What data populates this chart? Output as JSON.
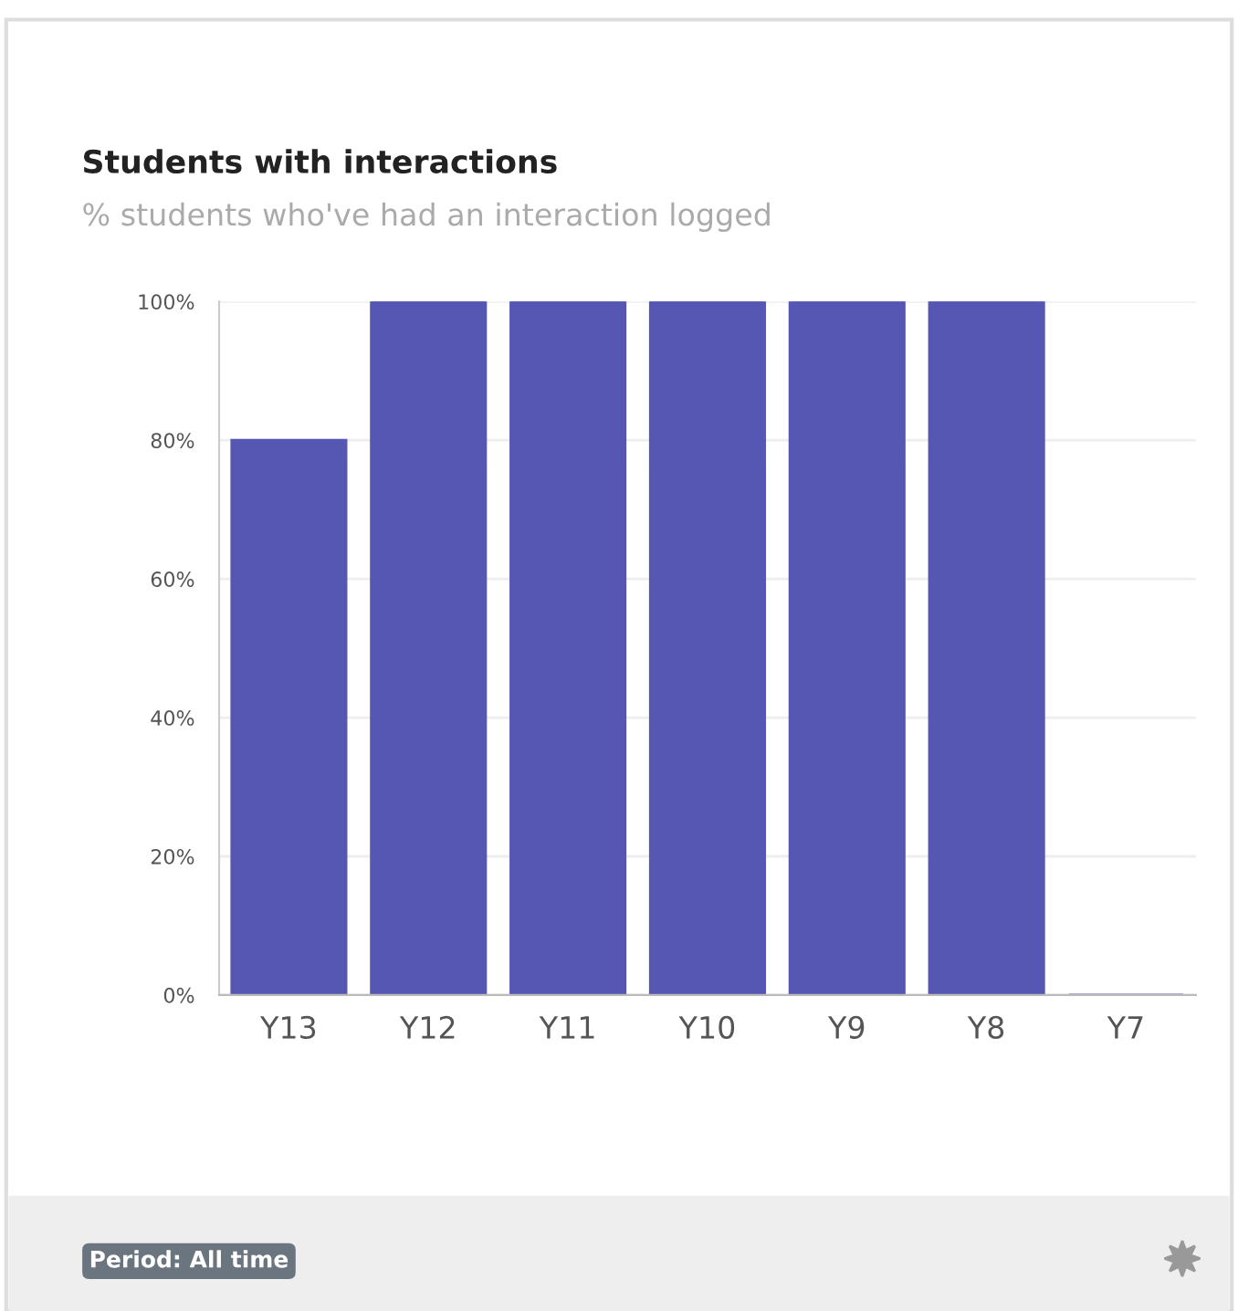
{
  "chart_data": {
    "type": "bar",
    "title": "Students with interactions",
    "subtitle": "% students who've had an interaction logged",
    "categories": [
      "Y13",
      "Y12",
      "Y11",
      "Y10",
      "Y9",
      "Y8",
      "Y7"
    ],
    "values": [
      80,
      100,
      100,
      100,
      100,
      100,
      0
    ],
    "color": "#5657b3",
    "ylim": [
      0,
      100
    ],
    "yticks": [
      {
        "value": 0,
        "label": "0%"
      },
      {
        "value": 20,
        "label": "20%"
      },
      {
        "value": 40,
        "label": "40%"
      },
      {
        "value": 60,
        "label": "60%"
      },
      {
        "value": 80,
        "label": "80%"
      },
      {
        "value": 100,
        "label": "100%"
      }
    ],
    "grid": "y",
    "legend": false,
    "annotations": [
      "Period: All time"
    ]
  }
}
